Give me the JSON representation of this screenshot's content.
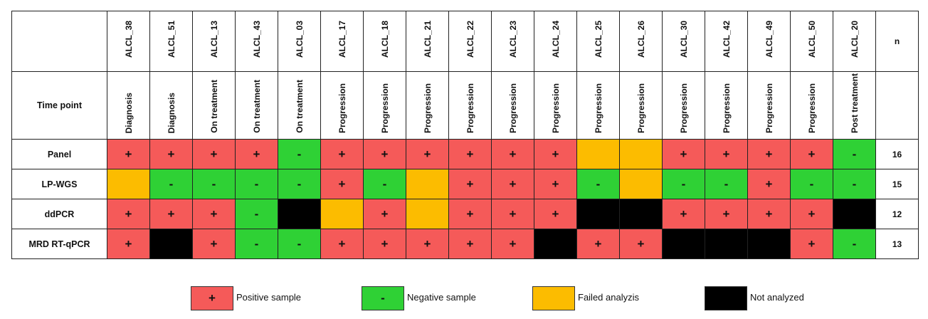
{
  "chart_data": {
    "type": "table",
    "samples": [
      "ALCL_38",
      "ALCL_51",
      "ALCL_13",
      "ALCL_43",
      "ALCL_03",
      "ALCL_17",
      "ALCL_18",
      "ALCL_21",
      "ALCL_22",
      "ALCL_23",
      "ALCL_24",
      "ALCL_25",
      "ALCL_26",
      "ALCL_30",
      "ALCL_42",
      "ALCL_49",
      "ALCL_50",
      "ALCL_20"
    ],
    "time_point_label": "Time point",
    "time_points": [
      "Diagnosis",
      "Diagnosis",
      "On treatment",
      "On treatment",
      "On treatment",
      "Progression",
      "Progression",
      "Progression",
      "Progression",
      "Progression",
      "Progression",
      "Progression",
      "Progression",
      "Progression",
      "Progression",
      "Progression",
      "Progression",
      "Post treatment"
    ],
    "n_header": "n",
    "rows": [
      {
        "label": "Panel",
        "n": "16",
        "values": [
          "pos",
          "pos",
          "pos",
          "pos",
          "neg",
          "pos",
          "pos",
          "pos",
          "pos",
          "pos",
          "pos",
          "fail",
          "fail",
          "pos",
          "pos",
          "pos",
          "pos",
          "neg"
        ]
      },
      {
        "label": "LP-WGS",
        "n": "15",
        "values": [
          "fail",
          "neg",
          "neg",
          "neg",
          "neg",
          "pos",
          "neg",
          "fail",
          "pos",
          "pos",
          "pos",
          "neg",
          "fail",
          "neg",
          "neg",
          "pos",
          "neg",
          "neg"
        ]
      },
      {
        "label": "ddPCR",
        "n": "12",
        "values": [
          "pos",
          "pos",
          "pos",
          "neg",
          "na",
          "fail",
          "pos",
          "fail",
          "pos",
          "pos",
          "pos",
          "na",
          "na",
          "pos",
          "pos",
          "pos",
          "pos",
          "na"
        ]
      },
      {
        "label": "MRD RT-qPCR",
        "n": "13",
        "values": [
          "pos",
          "na",
          "pos",
          "neg",
          "neg",
          "pos",
          "pos",
          "pos",
          "pos",
          "pos",
          "na",
          "pos",
          "pos",
          "na",
          "na",
          "na",
          "pos",
          "neg"
        ]
      }
    ],
    "symbols": {
      "pos": "+",
      "neg": "-",
      "fail": "",
      "na": ""
    },
    "colors": {
      "pos": "#f55a59",
      "neg": "#2fd135",
      "fail": "#fcbc00",
      "na": "#000000"
    },
    "legend": [
      {
        "key": "pos",
        "symbol": "+",
        "label": "Positive sample"
      },
      {
        "key": "neg",
        "symbol": "-",
        "label": "Negative sample"
      },
      {
        "key": "fail",
        "symbol": "",
        "label": "Failed analyzis"
      },
      {
        "key": "na",
        "symbol": "",
        "label": "Not analyzed"
      }
    ]
  }
}
